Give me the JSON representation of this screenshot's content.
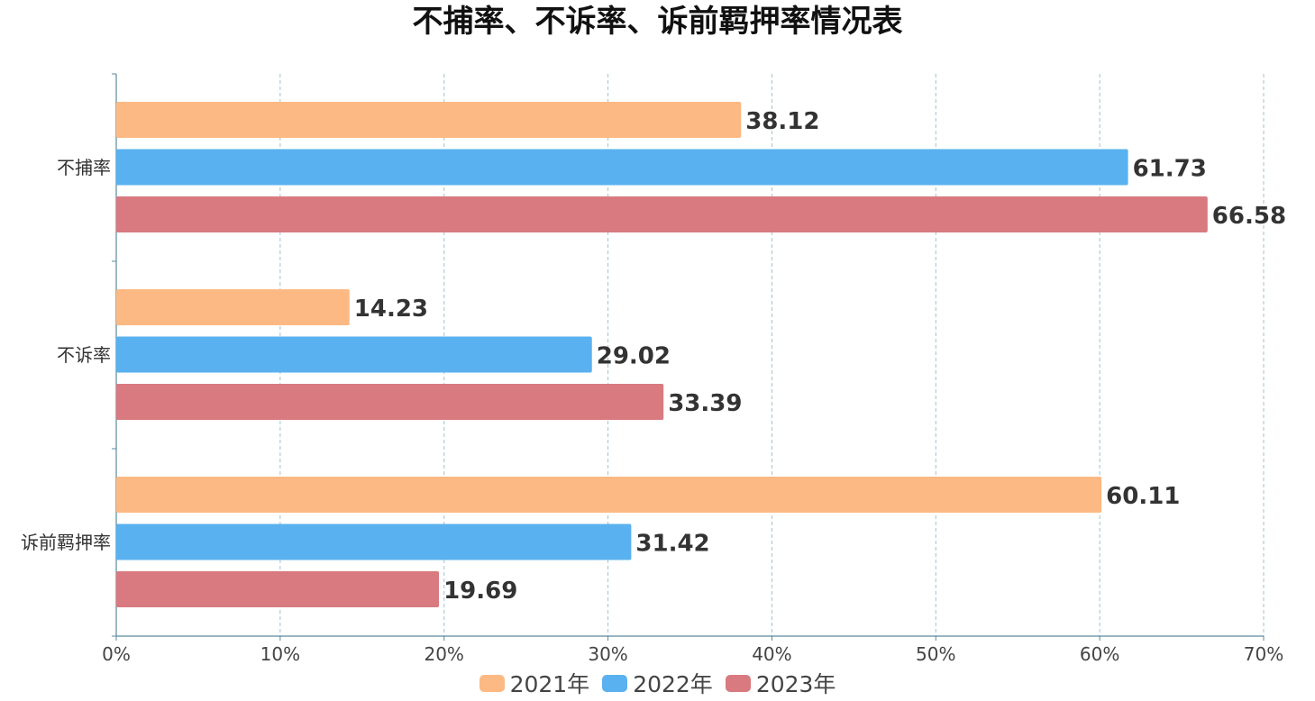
{
  "chart_data": {
    "type": "bar",
    "orientation": "horizontal",
    "title": "不捕率、不诉率、诉前羁押率情况表",
    "categories": [
      "不捕率",
      "不诉率",
      "诉前羁押率"
    ],
    "series": [
      {
        "name": "2021年",
        "color": "#FDB983",
        "values": [
          38.12,
          14.23,
          60.11
        ]
      },
      {
        "name": "2022年",
        "color": "#5AB1EF",
        "values": [
          61.73,
          29.02,
          31.42
        ]
      },
      {
        "name": "2023年",
        "color": "#D87A80",
        "values": [
          66.58,
          33.39,
          19.69
        ]
      }
    ],
    "xlim": [
      0,
      70
    ],
    "x_ticks": [
      "0%",
      "10%",
      "20%",
      "30%",
      "40%",
      "50%",
      "60%",
      "70%"
    ],
    "grid": "vertical dashed",
    "legend_position": "bottom-center",
    "data_labels": true
  }
}
